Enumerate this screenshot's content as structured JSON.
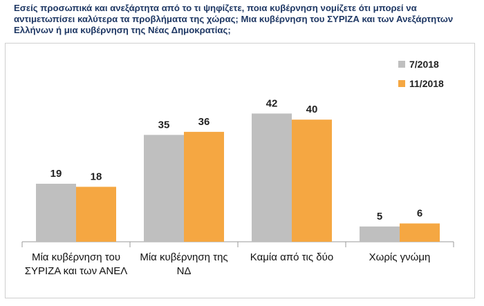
{
  "question": "Εσείς προσωπικά και ανεξάρτητα από το τι ψηφίζετε, ποια κυβέρνηση νομίζετε ότι μπορεί να αντιμετωπίσει καλύτερα τα προβλήματα της χώρας; Μια κυβέρνηση του ΣΥΡΙΖΑ και των Ανεξάρτητων Ελλήνων ή μια κυβέρνηση της Νέας Δημοκρατίας;",
  "chart_data": {
    "type": "bar",
    "title": "Εσείς προσωπικά και ανεξάρτητα από το τι ψηφίζετε, ποια κυβέρνηση νομίζετε ότι μπορεί να αντιμετωπίσει καλύτερα τα προβλήματα της χώρας; Μια κυβέρνηση του ΣΥΡΙΖΑ και των Ανεξάρτητων Ελλήνων ή μια κυβέρνηση της Νέας Δημοκρατίας;",
    "categories": [
      [
        "Μία κυβέρνηση του",
        "ΣΥΡΙΖΑ και των ΑΝΕΛ"
      ],
      [
        "Μία κυβέρνηση της",
        "ΝΔ"
      ],
      [
        "Καμία από τις δύο"
      ],
      [
        "Χωρίς γνώμη"
      ]
    ],
    "series": [
      {
        "name": "7/2018",
        "values": [
          19,
          35,
          42,
          5
        ],
        "color": "#bfbfbf"
      },
      {
        "name": "11/2018",
        "values": [
          18,
          36,
          40,
          6
        ],
        "color": "#f5a742"
      }
    ],
    "xlabel": "",
    "ylabel": "",
    "ylim": [
      0,
      50
    ],
    "grid": false,
    "legend": "top-right"
  }
}
